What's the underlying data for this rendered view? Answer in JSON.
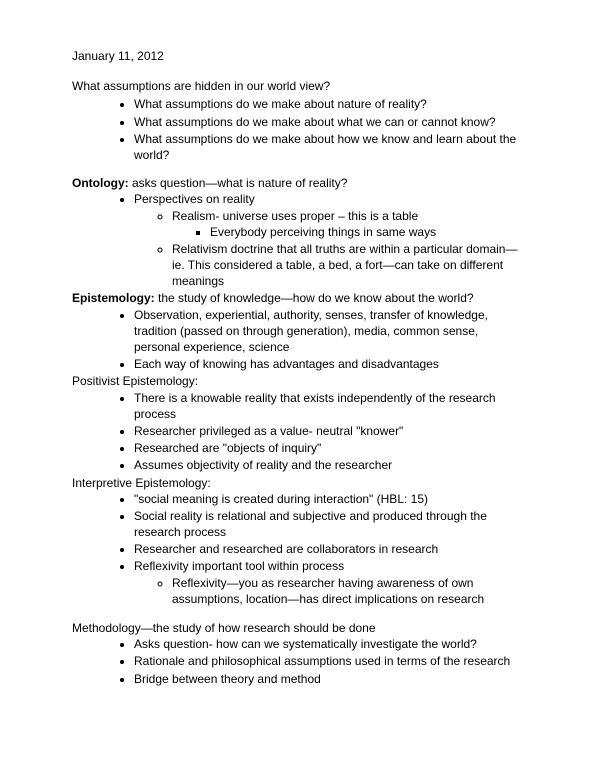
{
  "date": "January 11, 2012",
  "intro": "What assumptions are hidden in our world view?",
  "intro_bullets": [
    "What assumptions do we make about nature of reality?",
    "What assumptions do we make about what we can or cannot know?",
    "What assumptions do we make about how we know and learn about the world?"
  ],
  "ontology": {
    "term": "Ontology:",
    "def": " asks question—what is nature of reality?",
    "bullet1": "Perspectives on reality",
    "sub1": "Realism- universe uses proper – this is a table",
    "sub1a": "Everybody perceiving things in same ways",
    "sub2": "Relativism doctrine that all truths are within a particular domain—ie. This considered a table, a bed, a fort—can take on different meanings"
  },
  "epistemology": {
    "term": "Epistemology:",
    "def": " the study of knowledge—how do we know about the world?",
    "bullets": [
      "Observation, experiential, authority, senses, transfer of knowledge,  tradition (passed on through generation), media, common sense, personal experience, science",
      "Each way of knowing has advantages and disadvantages"
    ]
  },
  "positivist": {
    "heading": "Positivist Epistemology:",
    "bullets": [
      "There is a knowable reality that exists independently of the research process",
      "Researcher privileged as a value- neutral \"knower\"",
      "Researched are \"objects of inquiry\"",
      "Assumes objectivity of reality and the researcher"
    ]
  },
  "interpretive": {
    "heading": "Interpretive Epistemology:",
    "bullets": [
      "\"social meaning is created during interaction\" (HBL: 15)",
      "Social reality is relational and subjective and produced through the research process",
      "Researcher and researched are collaborators in research"
    ],
    "bullet4": "Reflexivity important tool within process",
    "sub4a": "Reflexivity—you as researcher having awareness of own assumptions, location—has direct implications on research"
  },
  "methodology": {
    "heading": "Methodology—the study of how research should be done",
    "bullets": [
      "Asks question- how can we systematically investigate the world?",
      "Rationale and philosophical assumptions used in terms of the research",
      "Bridge between theory and method"
    ]
  }
}
